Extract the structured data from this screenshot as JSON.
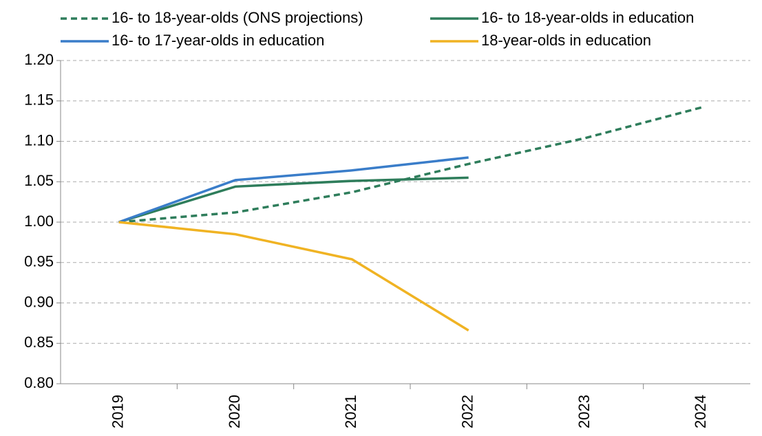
{
  "chart_data": {
    "type": "line",
    "categories": [
      "2019",
      "2020",
      "2021",
      "2022",
      "2023",
      "2024"
    ],
    "series": [
      {
        "name": "16- to 18-year-olds (ONS projections)",
        "color": "#2e7d5b",
        "dashed": true,
        "values": [
          1.0,
          1.012,
          1.037,
          1.072,
          1.104,
          1.142
        ]
      },
      {
        "name": "16- to 18-year-olds in education",
        "color": "#2e7d5b",
        "values": [
          1.0,
          1.044,
          1.051,
          1.055,
          null,
          null
        ]
      },
      {
        "name": "16- to 17-year-olds in education",
        "color": "#3a7dc9",
        "values": [
          1.0,
          1.052,
          1.064,
          1.08,
          null,
          null
        ]
      },
      {
        "name": "18-year-olds in education",
        "color": "#f0b323",
        "values": [
          1.0,
          0.985,
          0.954,
          0.866,
          null,
          null
        ]
      }
    ],
    "ylim": [
      0.8,
      1.2
    ],
    "yticks": [
      {
        "value": 0.8,
        "label": "0.80"
      },
      {
        "value": 0.85,
        "label": "0.85"
      },
      {
        "value": 0.9,
        "label": "0.90"
      },
      {
        "value": 0.95,
        "label": "0.95"
      },
      {
        "value": 1.0,
        "label": "1.00"
      },
      {
        "value": 1.05,
        "label": "1.05"
      },
      {
        "value": 1.1,
        "label": "1.10"
      },
      {
        "value": 1.15,
        "label": "1.15"
      },
      {
        "value": 1.2,
        "label": "1.20"
      }
    ],
    "grid": true
  }
}
